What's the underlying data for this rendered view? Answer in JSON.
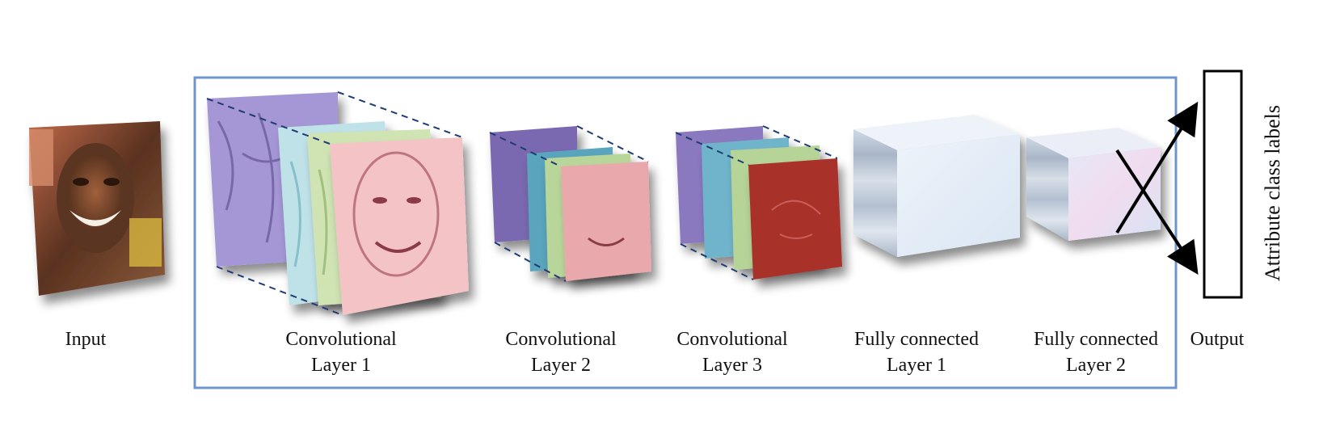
{
  "labels": {
    "input": "Input",
    "conv1": [
      "Convolutional",
      "Layer 1"
    ],
    "conv2": [
      "Convolutional",
      "Layer 2"
    ],
    "conv3": [
      "Convolutional",
      "Layer 3"
    ],
    "fc1": [
      "Fully connected",
      "Layer 1"
    ],
    "fc2": [
      "Fully connected",
      "Layer 2"
    ],
    "output": "Output",
    "output_box": "Attribute class labels"
  },
  "colors": {
    "frame": "#6f94cc",
    "dashed": "#1f3b73",
    "purple": "#9c8fcf",
    "cyan": "#a9d7df",
    "green": "#bcd79d",
    "pink": "#f0b3b8",
    "teal": "#4f9bb2",
    "dark_red": "#a8322c",
    "fc_face": "#e4eef8"
  }
}
